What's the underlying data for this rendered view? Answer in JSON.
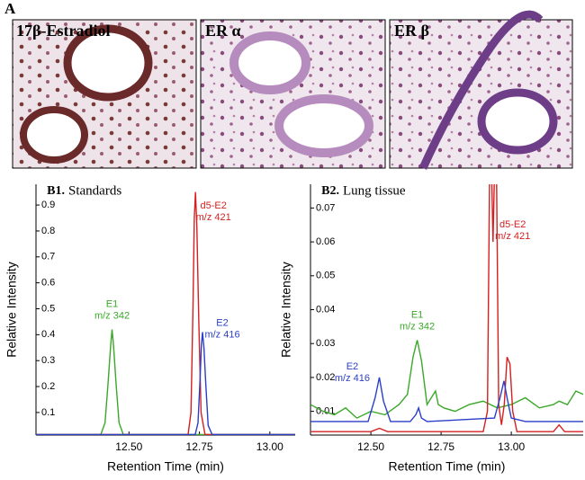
{
  "panel_label": "A",
  "images": [
    {
      "label": "17β-Estradiol"
    },
    {
      "label": "ER α"
    },
    {
      "label": "ER β"
    }
  ],
  "chart_data": [
    {
      "type": "line",
      "panel": "B1.",
      "title": "Standards",
      "xlabel": "Retention Time (min)",
      "ylabel": "Relative Intensity",
      "xlim": [
        12.17,
        13.09
      ],
      "ylim": [
        0.013,
        0.98
      ],
      "xticks": [
        {
          "value": 12.5,
          "label": "12.50"
        },
        {
          "value": 12.75,
          "label": "12.75"
        },
        {
          "value": 13.0,
          "label": "13.00"
        }
      ],
      "yticks": [
        0.1,
        0.2,
        0.3,
        0.4,
        0.5,
        0.6,
        0.7,
        0.8,
        0.9
      ],
      "series": [
        {
          "name": "E1",
          "note": "m/z 342",
          "color": "#3aa829",
          "x": [
            12.17,
            12.4,
            12.415,
            12.425,
            12.435,
            12.44,
            12.445,
            12.455,
            12.465,
            12.48,
            13.09
          ],
          "values": [
            0.015,
            0.015,
            0.06,
            0.2,
            0.36,
            0.42,
            0.36,
            0.2,
            0.06,
            0.015,
            0.015
          ]
        },
        {
          "name": "d5-E2",
          "note": "m/z 421",
          "color": "#d42020",
          "x": [
            12.17,
            12.71,
            12.72,
            12.727,
            12.732,
            12.736,
            12.741,
            12.748,
            12.756,
            12.77,
            13.09
          ],
          "values": [
            0.015,
            0.015,
            0.1,
            0.5,
            0.85,
            0.95,
            0.82,
            0.45,
            0.1,
            0.015,
            0.015
          ]
        },
        {
          "name": "E2",
          "note": "m/z 416",
          "color": "#2a3fc8",
          "x": [
            12.17,
            12.735,
            12.745,
            12.752,
            12.757,
            12.761,
            12.766,
            12.773,
            12.781,
            12.795,
            13.09
          ],
          "values": [
            0.015,
            0.015,
            0.06,
            0.22,
            0.36,
            0.41,
            0.35,
            0.2,
            0.05,
            0.015,
            0.015
          ]
        }
      ]
    },
    {
      "type": "line",
      "panel": "B2.",
      "title": "Lung tissue",
      "xlabel": "Retention Time (min)",
      "ylabel": "Relative Intensity",
      "xlim": [
        12.285,
        13.256
      ],
      "ylim": [
        0.003,
        0.077
      ],
      "xticks": [
        {
          "value": 12.5,
          "label": "12.50"
        },
        {
          "value": 12.75,
          "label": "12.75"
        },
        {
          "value": 13.0,
          "label": "13.00"
        }
      ],
      "yticks": [
        0.01,
        0.02,
        0.03,
        0.04,
        0.05,
        0.06,
        0.07
      ],
      "series": [
        {
          "name": "E1",
          "note": "m/z 342",
          "color": "#3aa829",
          "x": [
            12.285,
            12.33,
            12.37,
            12.41,
            12.45,
            12.5,
            12.55,
            12.6,
            12.63,
            12.65,
            12.665,
            12.68,
            12.7,
            12.73,
            12.74,
            12.76,
            12.8,
            12.85,
            12.9,
            12.95,
            13.0,
            13.05,
            13.1,
            13.15,
            13.17,
            13.2,
            13.23,
            13.256
          ],
          "values": [
            0.012,
            0.01,
            0.009,
            0.011,
            0.008,
            0.01,
            0.009,
            0.012,
            0.015,
            0.026,
            0.031,
            0.025,
            0.012,
            0.016,
            0.012,
            0.011,
            0.01,
            0.012,
            0.013,
            0.011,
            0.012,
            0.014,
            0.011,
            0.012,
            0.013,
            0.012,
            0.016,
            0.015
          ]
        },
        {
          "name": "d5-E2",
          "note": "m/z 421",
          "color": "#d42020",
          "x": [
            12.285,
            12.5,
            12.53,
            12.56,
            12.9,
            12.915,
            12.925,
            12.935,
            12.945,
            12.955,
            12.965,
            12.975,
            12.985,
            12.995,
            13.005,
            13.02,
            13.15,
            13.17,
            13.19,
            13.256
          ],
          "values": [
            0.004,
            0.004,
            0.005,
            0.004,
            0.004,
            0.01,
            0.1,
            0.06,
            0.1,
            0.012,
            0.006,
            0.012,
            0.026,
            0.024,
            0.01,
            0.004,
            0.004,
            0.006,
            0.004,
            0.004
          ]
        },
        {
          "name": "E2",
          "note": "m/z 416",
          "color": "#2a3fc8",
          "x": [
            12.285,
            12.49,
            12.515,
            12.53,
            12.545,
            12.57,
            12.64,
            12.66,
            12.67,
            12.68,
            12.7,
            12.94,
            12.96,
            12.974,
            12.985,
            13.0,
            13.05,
            13.256
          ],
          "values": [
            0.007,
            0.007,
            0.014,
            0.02,
            0.013,
            0.007,
            0.007,
            0.009,
            0.011,
            0.008,
            0.007,
            0.008,
            0.014,
            0.019,
            0.014,
            0.008,
            0.007,
            0.007
          ]
        }
      ]
    }
  ]
}
